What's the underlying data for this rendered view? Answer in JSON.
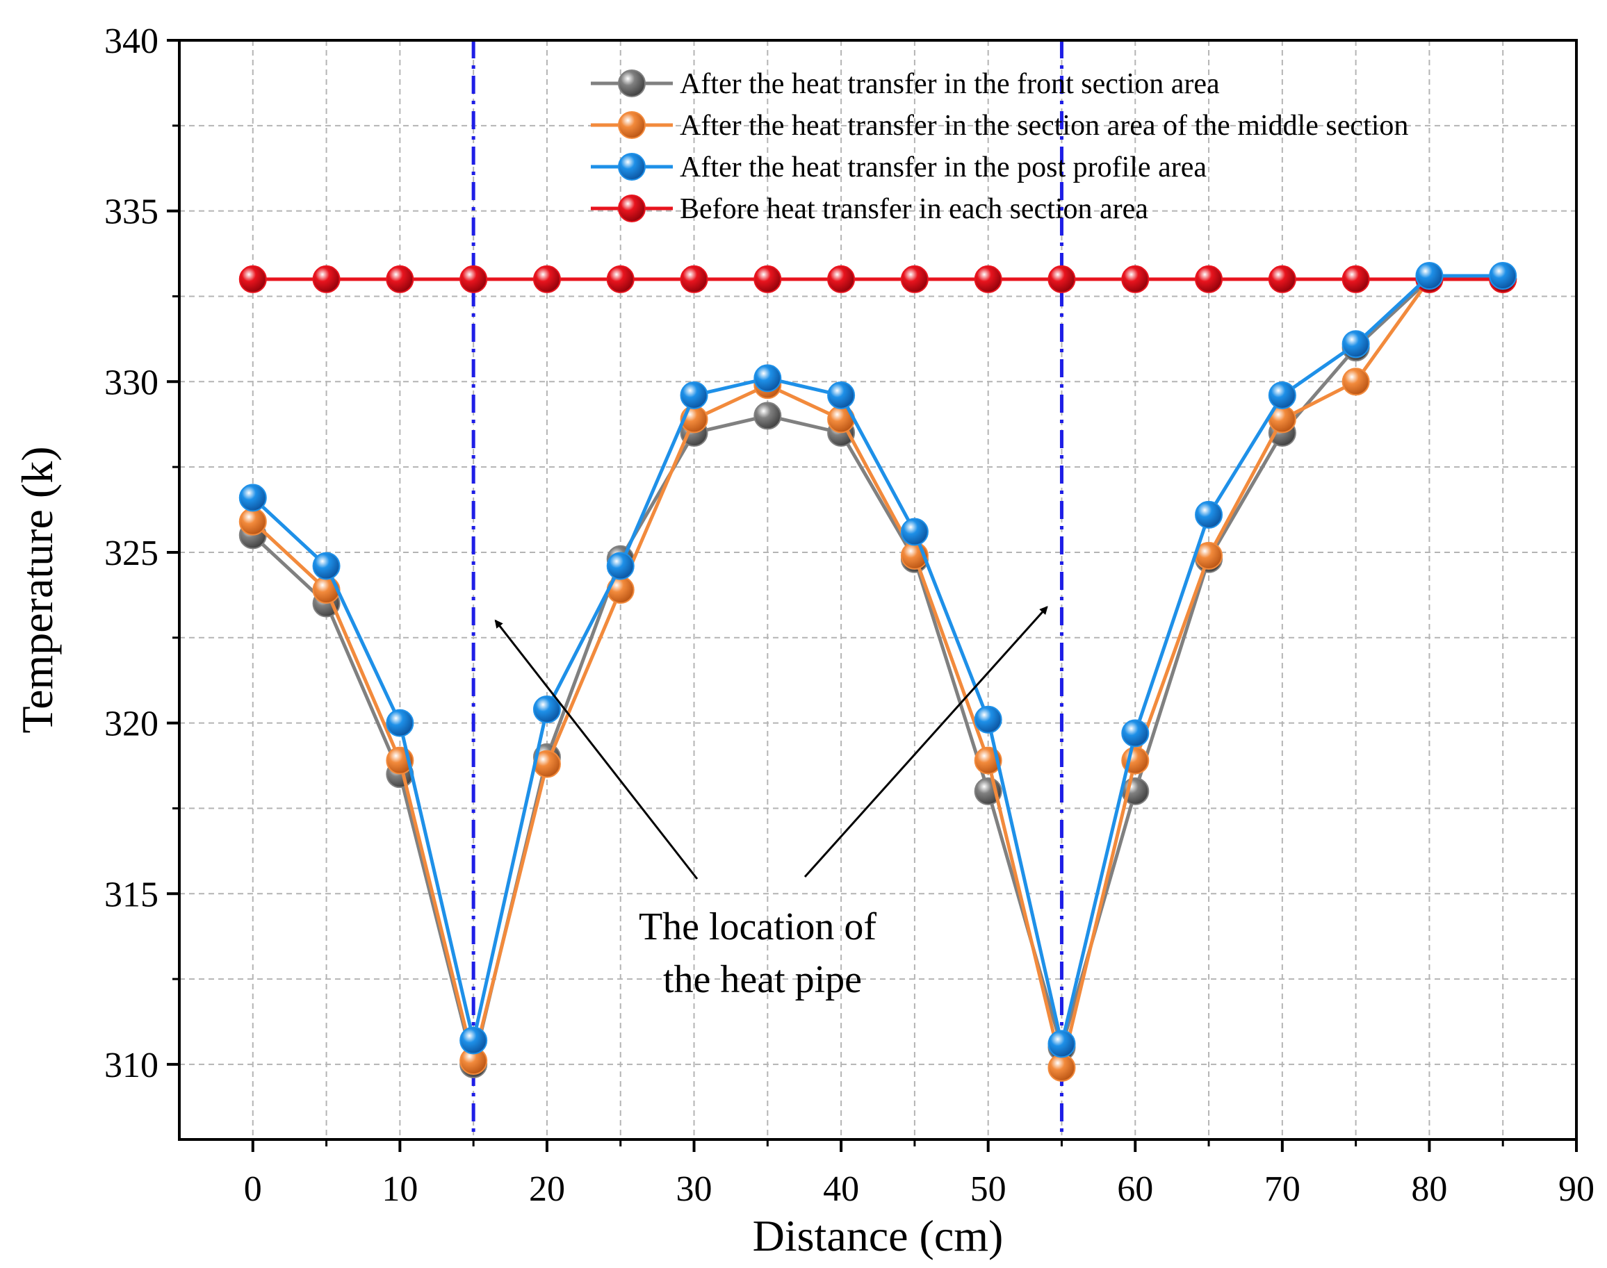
{
  "chart_data": {
    "type": "line",
    "title": "",
    "xlabel": "Distance (cm)",
    "ylabel": "Temperature (k)",
    "xlim": [
      -5,
      90
    ],
    "ylim": [
      307.8,
      340
    ],
    "xticks": [
      0,
      10,
      20,
      30,
      40,
      50,
      60,
      70,
      80,
      90
    ],
    "yticks": [
      310,
      315,
      320,
      325,
      330,
      335,
      340
    ],
    "grid": true,
    "legend_position": "top-right",
    "x": [
      0,
      5,
      10,
      15,
      20,
      25,
      30,
      35,
      40,
      45,
      50,
      55,
      60,
      65,
      70,
      75,
      80,
      85
    ],
    "series": [
      {
        "name": "After the heat transfer in the front section area",
        "color": "#808080",
        "values": [
          325.5,
          323.5,
          318.5,
          310.0,
          319.0,
          324.8,
          328.5,
          329.0,
          328.5,
          324.8,
          318.0,
          310.5,
          318.0,
          324.8,
          328.5,
          331.0,
          333.0,
          333.0
        ]
      },
      {
        "name": "After the heat transfer in the section area of the middle section",
        "color": "#F28A3C",
        "values": [
          325.9,
          323.9,
          318.9,
          310.1,
          318.8,
          323.9,
          328.9,
          329.9,
          328.9,
          324.9,
          318.9,
          309.9,
          318.9,
          324.9,
          328.9,
          330.0,
          333.0,
          333.0
        ]
      },
      {
        "name": "After the heat transfer in the post profile area",
        "color": "#1E90E8",
        "values": [
          326.6,
          324.6,
          320.0,
          310.7,
          320.4,
          324.6,
          329.6,
          330.1,
          329.6,
          325.6,
          320.1,
          310.6,
          319.7,
          326.1,
          329.6,
          331.1,
          333.1,
          333.1
        ]
      },
      {
        "name": "Before heat transfer in each section area",
        "color": "#E8141E",
        "values": [
          333,
          333,
          333,
          333,
          333,
          333,
          333,
          333,
          333,
          333,
          333,
          333,
          333,
          333,
          333,
          333,
          333,
          333
        ]
      }
    ],
    "reference_lines": [
      {
        "x": 15,
        "color": "#1E1EE6",
        "style": "dash-dot"
      },
      {
        "x": 55,
        "color": "#1E1EE6",
        "style": "dash-dot"
      }
    ],
    "annotation": {
      "lines": [
        "The location of",
        "the heat pipe"
      ],
      "arrow_targets": [
        {
          "x": 16.5,
          "y": 323.0
        },
        {
          "x": 54.0,
          "y": 323.4
        }
      ]
    }
  }
}
